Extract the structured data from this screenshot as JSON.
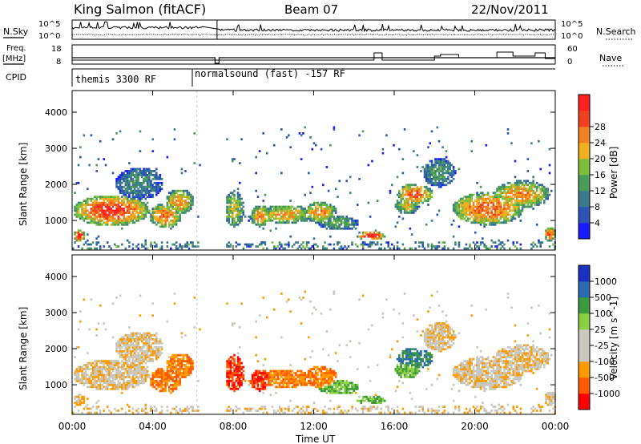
{
  "header": {
    "station": "King Salmon (fitACF)",
    "beam": "Beam 07",
    "date": "22/Nov/2011"
  },
  "left_labels": {
    "nsky": "N.Sky",
    "freq_line1": "Freq.",
    "freq_line2": "[MHz]",
    "cpid": "CPID"
  },
  "right_labels": {
    "nsearch": "N.Search",
    "nave": "Nave"
  },
  "scale_labels": {
    "noise_top": "10^5",
    "noise_bottom": "10^0",
    "freq_top": "18",
    "freq_bottom": "8",
    "nave_top": "60",
    "nave_bottom": "0"
  },
  "cpid_segments": [
    {
      "label": "themis 3300 RF",
      "start_hour": 0,
      "end_hour": 6.2
    },
    {
      "label": "normalsound (fast) -157 RF",
      "start_hour": 6.2,
      "end_hour": 24
    }
  ],
  "axes": {
    "ylabel": "Slant Range [km]",
    "xlabel": "Time UT",
    "xticks": [
      "00:00",
      "04:00",
      "08:00",
      "12:00",
      "16:00",
      "20:00",
      "00:00"
    ],
    "yticks": [
      "1000",
      "2000",
      "3000",
      "4000"
    ]
  },
  "colors": {
    "power": [
      "#1a1aff",
      "#2a55b4",
      "#3a7a8c",
      "#4a9a5a",
      "#7dbf3a",
      "#f0b020",
      "#f08020",
      "#f04020",
      "#ff2020"
    ],
    "velocity": [
      "#ff0000",
      "#ff5a00",
      "#ff9a00",
      "#c8c8be",
      "#c8c8be",
      "#8ad040",
      "#3c9a3c",
      "#2a6ab0",
      "#1a30c0"
    ]
  },
  "chart_data": [
    {
      "type": "line",
      "title": "N.Sky / N.Search",
      "xlim": [
        0,
        24
      ],
      "ylog": true,
      "ylim": [
        1,
        100000
      ],
      "series": [
        {
          "name": "N.Sky",
          "style": "solid"
        },
        {
          "name": "N.Search",
          "style": "dotted"
        }
      ]
    },
    {
      "type": "line",
      "xlim": [
        0,
        24
      ],
      "series": [
        {
          "name": "Freq.",
          "unit": "MHz",
          "ylim": [
            8,
            18
          ],
          "style": "solid"
        },
        {
          "name": "Nave",
          "ylim": [
            0,
            60
          ],
          "style": "dotted"
        }
      ]
    },
    {
      "type": "heatmap",
      "quantity": "Power",
      "colorbar_label": "Power [dB]",
      "colorbar_ticks": [
        "4",
        "8",
        "12",
        "16",
        "20",
        "24",
        "28"
      ],
      "xlabel": "Time UT",
      "ylabel": "Slant Range [km]",
      "xlim": [
        0,
        24
      ],
      "ylim": [
        180,
        4600
      ]
    },
    {
      "type": "heatmap",
      "quantity": "Velocity",
      "colorbar_label": "Velocity [m s^-1]",
      "colorbar_ticks": [
        "1000",
        "500",
        "100",
        "25",
        "-25",
        "-100",
        "-500",
        "-1000"
      ],
      "xlabel": "Time UT",
      "ylabel": "Slant Range [km]",
      "xlim": [
        0,
        24
      ],
      "ylim": [
        180,
        4600
      ]
    }
  ]
}
